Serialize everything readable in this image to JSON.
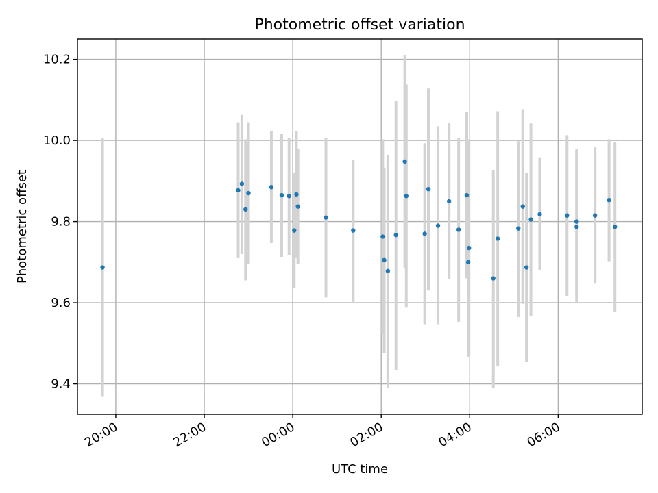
{
  "chart_data": {
    "type": "scatter",
    "title": "Photometric offset variation",
    "xlabel": "UTC time",
    "ylabel": "Photometric offset",
    "x_axis": {
      "ticks": [
        {
          "time": "20:00",
          "label": "20:00"
        },
        {
          "time": "22:00",
          "label": "22:00"
        },
        {
          "time": "00:00",
          "label": "00:00"
        },
        {
          "time": "02:00",
          "label": "02:00"
        },
        {
          "time": "04:00",
          "label": "04:00"
        },
        {
          "time": "06:00",
          "label": "06:00"
        }
      ],
      "xlim": [
        "19:08",
        "07:54"
      ],
      "tick_rotation_deg": 30
    },
    "y_axis": {
      "ticks": [
        {
          "value": 9.4,
          "label": "9.4"
        },
        {
          "value": 9.6,
          "label": "9.6"
        },
        {
          "value": 9.8,
          "label": "9.8"
        },
        {
          "value": 10.0,
          "label": "10.0"
        },
        {
          "value": 10.2,
          "label": "10.2"
        }
      ],
      "ylim": [
        9.325,
        10.25
      ]
    },
    "grid": true,
    "marker_color": "#1f77b4",
    "errorbar_color": "#d3d3d3",
    "points": [
      {
        "time": "19:42",
        "y": 9.687,
        "low": 9.368,
        "high": 10.005
      },
      {
        "time": "22:46",
        "y": 9.877,
        "low": 9.71,
        "high": 10.045
      },
      {
        "time": "22:51",
        "y": 9.893,
        "low": 9.72,
        "high": 10.063
      },
      {
        "time": "22:56",
        "y": 9.83,
        "low": 9.655,
        "high": 10.003
      },
      {
        "time": "23:00",
        "y": 9.87,
        "low": 9.695,
        "high": 10.045
      },
      {
        "time": "23:31",
        "y": 9.885,
        "low": 9.747,
        "high": 10.023
      },
      {
        "time": "23:45",
        "y": 9.865,
        "low": 9.713,
        "high": 10.017
      },
      {
        "time": "23:55",
        "y": 9.863,
        "low": 9.718,
        "high": 10.007
      },
      {
        "time": "00:02",
        "y": 9.778,
        "low": 9.637,
        "high": 9.92
      },
      {
        "time": "00:05",
        "y": 9.867,
        "low": 9.71,
        "high": 10.023
      },
      {
        "time": "00:07",
        "y": 9.837,
        "low": 9.695,
        "high": 9.98
      },
      {
        "time": "00:45",
        "y": 9.81,
        "low": 9.613,
        "high": 10.007
      },
      {
        "time": "01:22",
        "y": 9.778,
        "low": 9.602,
        "high": 9.953
      },
      {
        "time": "02:02",
        "y": 9.763,
        "low": 9.523,
        "high": 10.003
      },
      {
        "time": "02:04",
        "y": 9.705,
        "low": 9.477,
        "high": 9.933
      },
      {
        "time": "02:09",
        "y": 9.678,
        "low": 9.39,
        "high": 9.965
      },
      {
        "time": "02:20",
        "y": 9.767,
        "low": 9.433,
        "high": 10.098
      },
      {
        "time": "02:32",
        "y": 9.948,
        "low": 9.685,
        "high": 10.21
      },
      {
        "time": "02:34",
        "y": 9.863,
        "low": 9.588,
        "high": 10.138
      },
      {
        "time": "02:59",
        "y": 9.77,
        "low": 9.547,
        "high": 9.993
      },
      {
        "time": "03:04",
        "y": 9.88,
        "low": 9.63,
        "high": 10.128
      },
      {
        "time": "03:17",
        "y": 9.79,
        "low": 9.547,
        "high": 10.035
      },
      {
        "time": "03:32",
        "y": 9.85,
        "low": 9.658,
        "high": 10.043
      },
      {
        "time": "03:45",
        "y": 9.78,
        "low": 9.553,
        "high": 10.005
      },
      {
        "time": "03:56",
        "y": 9.865,
        "low": 9.66,
        "high": 10.07
      },
      {
        "time": "03:58",
        "y": 9.7,
        "low": 9.467,
        "high": 9.933
      },
      {
        "time": "03:59",
        "y": 9.735,
        "low": 9.467,
        "high": 10.003
      },
      {
        "time": "04:32",
        "y": 9.66,
        "low": 9.39,
        "high": 9.927
      },
      {
        "time": "04:38",
        "y": 9.758,
        "low": 9.443,
        "high": 10.072
      },
      {
        "time": "05:06",
        "y": 9.783,
        "low": 9.565,
        "high": 9.998
      },
      {
        "time": "05:12",
        "y": 9.837,
        "low": 9.597,
        "high": 10.077
      },
      {
        "time": "05:17",
        "y": 9.687,
        "low": 9.455,
        "high": 9.92
      },
      {
        "time": "05:23",
        "y": 9.805,
        "low": 9.568,
        "high": 10.042
      },
      {
        "time": "05:35",
        "y": 9.818,
        "low": 9.68,
        "high": 9.957
      },
      {
        "time": "06:12",
        "y": 9.815,
        "low": 9.617,
        "high": 10.013
      },
      {
        "time": "06:25",
        "y": 9.8,
        "low": 9.62,
        "high": 9.98
      },
      {
        "time": "06:25",
        "y": 9.787,
        "low": 9.6,
        "high": 9.973
      },
      {
        "time": "06:50",
        "y": 9.815,
        "low": 9.647,
        "high": 9.983
      },
      {
        "time": "07:09",
        "y": 9.853,
        "low": 9.702,
        "high": 10.003
      },
      {
        "time": "07:17",
        "y": 9.787,
        "low": 9.578,
        "high": 9.995
      }
    ]
  }
}
